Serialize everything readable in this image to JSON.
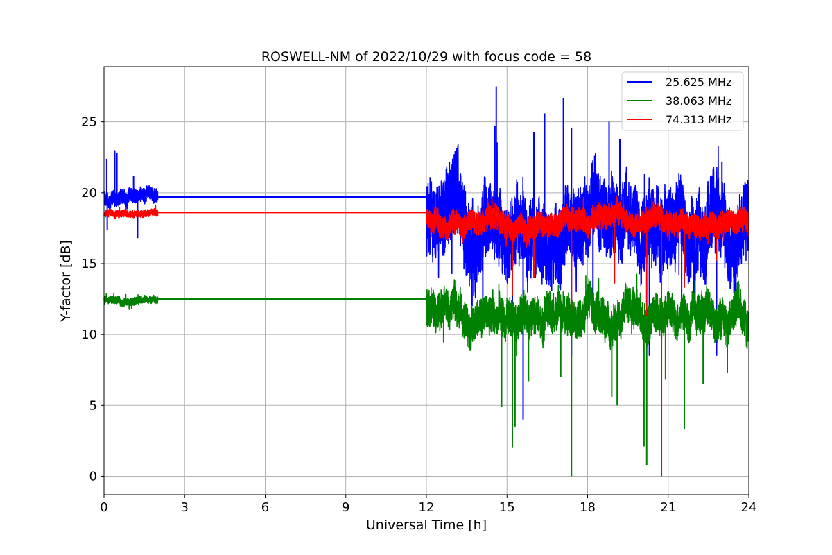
{
  "chart_data": {
    "type": "line",
    "title": "ROSWELL-NM of 2022/10/29 with focus code = 58",
    "xlabel": "Universal Time [h]",
    "ylabel": "Y-factor [dB]",
    "xlim": [
      0,
      24
    ],
    "ylim": [
      -1.3,
      28.9
    ],
    "xticks": [
      0,
      3,
      6,
      9,
      12,
      15,
      18,
      21,
      24
    ],
    "yticks": [
      0,
      5,
      10,
      15,
      20,
      25
    ],
    "grid": true,
    "legend_position": "top-right",
    "series": [
      {
        "name": "25.625 MHz",
        "color": "#0000ff",
        "noise_sections": [
          {
            "x": [
              0,
              2
            ],
            "base": 19.6,
            "amp": 0.5,
            "spikes": [
              [
                0.1,
                22.4
              ],
              [
                0.4,
                23.0
              ],
              [
                0.48,
                22.8
              ],
              [
                0.12,
                17.4
              ],
              [
                1.25,
                16.8
              ],
              [
                1.1,
                21.2
              ]
            ]
          },
          {
            "x": [
              12,
              24
            ],
            "base": 17.6,
            "amp": 2.6,
            "spikes": [
              [
                14.6,
                27.5
              ],
              [
                14.55,
                24.7
              ],
              [
                16.4,
                25.6
              ],
              [
                16.0,
                24.3
              ],
              [
                17.1,
                26.7
              ],
              [
                17.4,
                24.6
              ],
              [
                18.8,
                25.0
              ],
              [
                23.0,
                22.2
              ],
              [
                19.2,
                23.8
              ],
              [
                15.2,
                4.0
              ],
              [
                15.6,
                4.0
              ],
              [
                17.4,
                8.5
              ],
              [
                20.3,
                8.5
              ],
              [
                22.8,
                8.5
              ],
              [
                13.4,
                14.6
              ],
              [
                13.7,
                12.0
              ],
              [
                14.1,
                12.3
              ],
              [
                18.2,
                11.4
              ],
              [
                21.5,
                11.5
              ]
            ]
          }
        ],
        "flat_segments": [
          {
            "x": [
              2,
              12
            ],
            "y": 19.7
          }
        ]
      },
      {
        "name": "38.063 MHz",
        "color": "#008000",
        "noise_sections": [
          {
            "x": [
              0,
              2
            ],
            "base": 12.4,
            "amp": 0.25,
            "spikes": []
          },
          {
            "x": [
              12,
              24
            ],
            "base": 11.4,
            "amp": 1.3,
            "spikes": [
              [
                15.2,
                2.0
              ],
              [
                15.3,
                3.5
              ],
              [
                14.8,
                4.9
              ],
              [
                17.4,
                0.0
              ],
              [
                20.1,
                2.1
              ],
              [
                20.2,
                0.8
              ],
              [
                21.6,
                3.3
              ],
              [
                19.1,
                5.0
              ],
              [
                15.8,
                6.7
              ],
              [
                17.0,
                7.0
              ],
              [
                18.9,
                5.6
              ],
              [
                22.3,
                6.5
              ],
              [
                23.2,
                7.3
              ],
              [
                22.0,
                13.8
              ],
              [
                20.9,
                6.8
              ]
            ]
          }
        ],
        "flat_segments": [
          {
            "x": [
              2,
              12
            ],
            "y": 12.5
          }
        ]
      },
      {
        "name": "74.313 MHz",
        "color": "#ff0000",
        "noise_sections": [
          {
            "x": [
              0,
              2
            ],
            "base": 18.5,
            "amp": 0.25,
            "spikes": []
          },
          {
            "x": [
              12,
              24
            ],
            "base": 17.9,
            "amp": 0.8,
            "spikes": [
              [
                20.75,
                0.0
              ],
              [
                15.2,
                12.7
              ],
              [
                17.4,
                11.8
              ],
              [
                20.2,
                11.3
              ],
              [
                19.0,
                13.6
              ],
              [
                21.6,
                13.3
              ],
              [
                16.0,
                14.0
              ],
              [
                22.8,
                15.2
              ]
            ]
          }
        ],
        "flat_segments": [
          {
            "x": [
              2,
              12
            ],
            "y": 18.6
          }
        ]
      }
    ]
  }
}
